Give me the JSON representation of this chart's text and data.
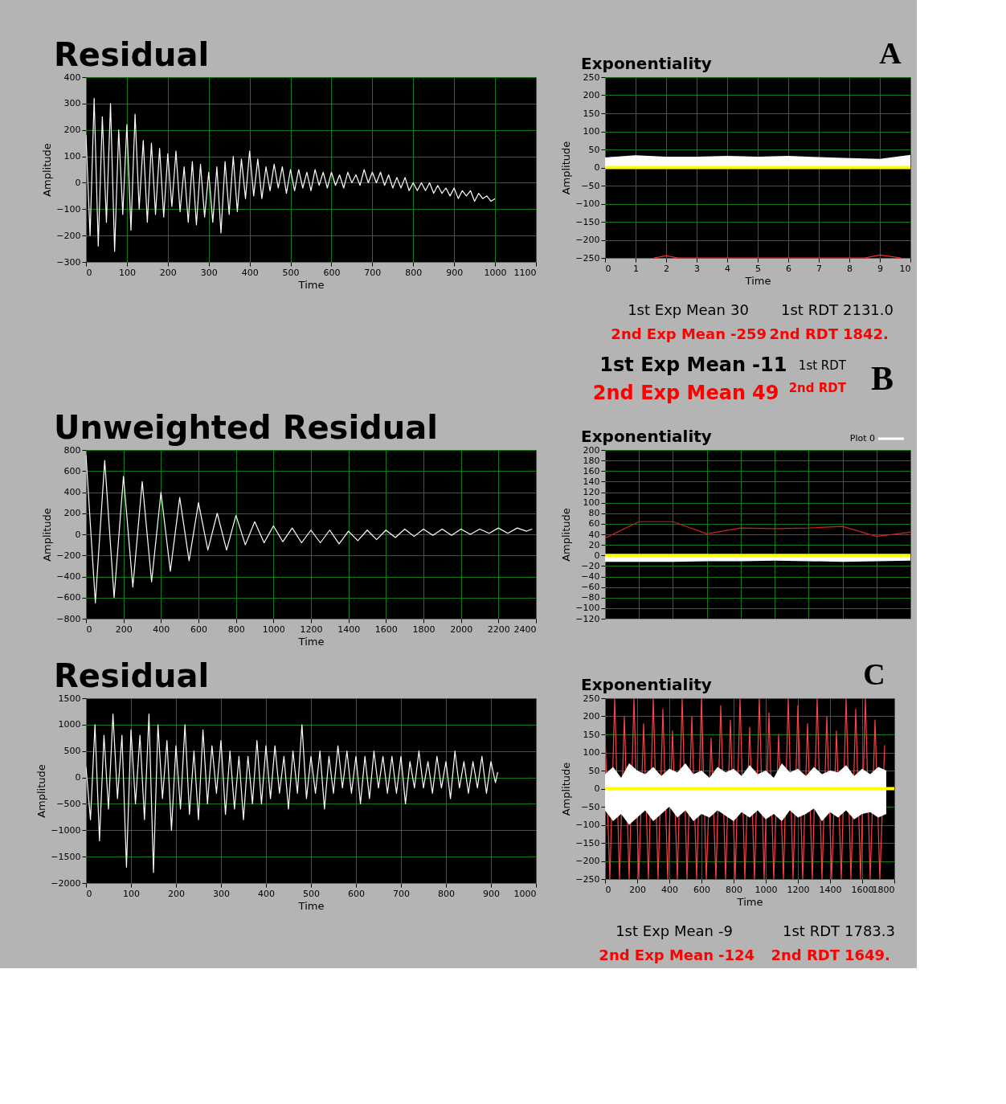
{
  "chart_data": [
    {
      "type": "line",
      "title": "Residual",
      "xlabel": "Time",
      "ylabel": "Amplitude",
      "xlim": [
        0,
        1100
      ],
      "xticks": [
        0,
        100,
        200,
        300,
        400,
        500,
        600,
        700,
        800,
        900,
        1000,
        1100
      ],
      "ylim": [
        -300,
        400
      ],
      "yticks": [
        -300,
        -200,
        -100,
        0,
        100,
        200,
        300,
        400
      ],
      "grid": true,
      "x": [
        0,
        10,
        20,
        30,
        40,
        50,
        60,
        70,
        80,
        90,
        100,
        110,
        120,
        130,
        140,
        150,
        160,
        170,
        180,
        190,
        200,
        210,
        220,
        230,
        240,
        250,
        260,
        270,
        280,
        290,
        300,
        310,
        320,
        330,
        340,
        350,
        360,
        370,
        380,
        390,
        400,
        410,
        420,
        430,
        440,
        450,
        460,
        470,
        480,
        490,
        500,
        510,
        520,
        530,
        540,
        550,
        560,
        570,
        580,
        590,
        600,
        610,
        620,
        630,
        640,
        650,
        660,
        670,
        680,
        690,
        700,
        710,
        720,
        730,
        740,
        750,
        760,
        770,
        780,
        790,
        800,
        810,
        820,
        830,
        840,
        850,
        860,
        870,
        880,
        890,
        900,
        910,
        920,
        930,
        940,
        950,
        960,
        970,
        980,
        990,
        1000
      ],
      "series": [
        {
          "color": "#ffffff",
          "values": [
            180,
            -200,
            320,
            -240,
            250,
            -150,
            300,
            -260,
            200,
            -120,
            220,
            -180,
            260,
            -100,
            160,
            -150,
            150,
            -120,
            130,
            -130,
            110,
            -90,
            120,
            -110,
            60,
            -150,
            80,
            -160,
            70,
            -130,
            40,
            -150,
            60,
            -190,
            80,
            -120,
            100,
            -110,
            90,
            -60,
            120,
            -50,
            90,
            -60,
            60,
            -30,
            70,
            -20,
            60,
            -40,
            50,
            -30,
            50,
            -20,
            40,
            -30,
            50,
            -10,
            40,
            -20,
            40,
            -10,
            30,
            -20,
            40,
            0,
            30,
            -10,
            50,
            0,
            40,
            0,
            40,
            -10,
            30,
            -20,
            20,
            -20,
            20,
            -30,
            0,
            -30,
            0,
            -30,
            0,
            -40,
            -10,
            -40,
            -20,
            -50,
            -20,
            -60,
            -30,
            -50,
            -30,
            -70,
            -40,
            -60,
            -50,
            -70,
            -60
          ]
        }
      ]
    },
    {
      "type": "line",
      "title": "Exponentiality",
      "xlabel": "Time",
      "ylabel": "Amplitude",
      "xlim": [
        0,
        10
      ],
      "xticks": [
        0,
        1,
        2,
        3,
        4,
        5,
        6,
        7,
        8,
        9,
        10
      ],
      "ylim": [
        -250,
        250
      ],
      "yticks": [
        -250,
        -200,
        -150,
        -100,
        -50,
        0,
        50,
        100,
        150,
        200,
        250
      ],
      "grid": true,
      "series": [
        {
          "type": "area",
          "color": "#ffffff",
          "x": [
            0,
            1,
            2,
            3,
            4,
            5,
            6,
            7,
            8,
            9,
            10
          ],
          "values": [
            28,
            34,
            30,
            30,
            32,
            30,
            32,
            29,
            26,
            24,
            35
          ]
        },
        {
          "color": "#ff3030",
          "x": [
            1.6,
            2,
            2.4,
            8.5,
            9,
            9.7
          ],
          "values": [
            -250,
            -244,
            -250,
            -250,
            -242,
            -250
          ]
        }
      ],
      "ref_lines": [
        {
          "axis": "y",
          "value": 0,
          "color": "#ffff00"
        }
      ],
      "annotations": [
        "A",
        "1st Exp Mean",
        "30",
        "1st RDT",
        "2131.0",
        "2nd Exp Mean",
        "-259",
        "2nd RDT",
        "1842."
      ]
    },
    {
      "type": "line",
      "title": "Unweighted Residual",
      "xlabel": "Time",
      "ylabel": "Amplitude",
      "xlim": [
        0,
        2400
      ],
      "xticks": [
        0,
        200,
        400,
        600,
        800,
        1000,
        1200,
        1400,
        1600,
        1800,
        2000,
        2200,
        2400
      ],
      "ylim": [
        -800,
        800
      ],
      "yticks": [
        -800,
        -600,
        -400,
        -200,
        0,
        200,
        400,
        600,
        800
      ],
      "grid": true,
      "x": [
        0,
        50,
        100,
        150,
        200,
        250,
        300,
        350,
        400,
        450,
        500,
        550,
        600,
        650,
        700,
        750,
        800,
        850,
        900,
        950,
        1000,
        1050,
        1100,
        1150,
        1200,
        1250,
        1300,
        1350,
        1400,
        1450,
        1500,
        1550,
        1600,
        1650,
        1700,
        1750,
        1800,
        1850,
        1900,
        1950,
        2000,
        2050,
        2100,
        2150,
        2200,
        2250,
        2300,
        2350,
        2380
      ],
      "series": [
        {
          "color": "#ffffff",
          "values": [
            750,
            -650,
            700,
            -600,
            550,
            -500,
            500,
            -450,
            400,
            -350,
            350,
            -250,
            300,
            -150,
            200,
            -150,
            180,
            -100,
            120,
            -80,
            80,
            -70,
            60,
            -80,
            40,
            -80,
            40,
            -90,
            30,
            -60,
            40,
            -50,
            40,
            -30,
            50,
            -20,
            50,
            -10,
            50,
            -10,
            50,
            0,
            50,
            10,
            60,
            10,
            60,
            30,
            50
          ]
        }
      ]
    },
    {
      "type": "line",
      "title": "Exponentiality",
      "ylabel": "Amplitude",
      "categories": [
        null,
        null,
        null,
        null,
        null,
        null,
        null,
        null,
        null,
        null
      ],
      "ylim": [
        -120,
        200
      ],
      "yticks": [
        -120,
        -100,
        -80,
        -60,
        -40,
        -20,
        0,
        20,
        40,
        60,
        80,
        100,
        120,
        140,
        160,
        180,
        200
      ],
      "grid": true,
      "tick_labels": "y",
      "legend": "top right",
      "series": [
        {
          "type": "area",
          "name": "Plot 0",
          "color": "#ffffff",
          "values": [
            -12,
            -12,
            -12,
            -11,
            -11,
            -10,
            -11,
            -12,
            -11,
            -10
          ]
        },
        {
          "color": "#d02020",
          "values": [
            33,
            64,
            64,
            41,
            52,
            51,
            52,
            55,
            36,
            44
          ]
        }
      ],
      "ref_lines": [
        {
          "axis": "y",
          "value": 0,
          "color": "#ffff00"
        }
      ],
      "annotations": [
        "1st Exp Mean",
        "-11",
        "2nd Exp Mean",
        "49",
        "1st RDT",
        "2nd RDT",
        "B"
      ]
    },
    {
      "type": "line",
      "title": "Residual",
      "xlabel": "Time",
      "ylabel": "Amplitude",
      "xlim": [
        0,
        1000
      ],
      "xticks": [
        0,
        100,
        200,
        300,
        400,
        500,
        600,
        700,
        800,
        900,
        1000
      ],
      "ylim": [
        -2000,
        1500
      ],
      "yticks": [
        -2000,
        -1500,
        -1000,
        -500,
        0,
        500,
        1000,
        1500
      ],
      "grid": true,
      "x": [
        0,
        10,
        20,
        30,
        40,
        50,
        60,
        70,
        80,
        90,
        100,
        110,
        120,
        130,
        140,
        150,
        160,
        170,
        180,
        190,
        200,
        210,
        220,
        230,
        240,
        250,
        260,
        270,
        280,
        290,
        300,
        310,
        320,
        330,
        340,
        350,
        360,
        370,
        380,
        390,
        400,
        410,
        420,
        430,
        440,
        450,
        460,
        470,
        480,
        490,
        500,
        510,
        520,
        530,
        540,
        550,
        560,
        570,
        580,
        590,
        600,
        610,
        620,
        630,
        640,
        650,
        660,
        670,
        680,
        690,
        700,
        710,
        720,
        730,
        740,
        750,
        760,
        770,
        780,
        790,
        800,
        810,
        820,
        830,
        840,
        850,
        860,
        870,
        880,
        890,
        900,
        910,
        915
      ],
      "series": [
        {
          "color": "#ffffff",
          "values": [
            200,
            -800,
            1000,
            -1200,
            800,
            -600,
            1200,
            -400,
            800,
            -1700,
            900,
            -500,
            800,
            -800,
            1200,
            -1800,
            1000,
            -400,
            700,
            -1000,
            600,
            -600,
            1000,
            -700,
            500,
            -800,
            900,
            -500,
            600,
            -300,
            700,
            -700,
            500,
            -600,
            400,
            -800,
            400,
            -500,
            700,
            -500,
            600,
            -400,
            600,
            -300,
            400,
            -600,
            500,
            -300,
            1000,
            -400,
            400,
            -300,
            500,
            -600,
            400,
            -300,
            600,
            -200,
            500,
            -300,
            400,
            -500,
            400,
            -400,
            500,
            -200,
            400,
            -300,
            400,
            -300,
            400,
            -500,
            300,
            -200,
            500,
            -200,
            300,
            -300,
            400,
            -200,
            300,
            -400,
            500,
            -200,
            300,
            -300,
            300,
            -200,
            400,
            -300,
            300,
            -100,
            100
          ]
        }
      ]
    },
    {
      "type": "line",
      "title": "Exponentiality",
      "xlabel": "Time",
      "ylabel": "Amplitude",
      "xlim": [
        0,
        1800
      ],
      "xticks": [
        0,
        200,
        400,
        600,
        800,
        1000,
        1200,
        1400,
        1600,
        1800
      ],
      "ylim": [
        -250,
        250
      ],
      "yticks": [
        -250,
        -200,
        -150,
        -100,
        -50,
        0,
        50,
        100,
        150,
        200,
        250
      ],
      "grid": true,
      "series": [
        {
          "color": "#ff4040",
          "x": [
            0,
            30,
            60,
            90,
            120,
            150,
            180,
            210,
            240,
            270,
            300,
            330,
            360,
            390,
            420,
            450,
            480,
            510,
            540,
            570,
            600,
            630,
            660,
            690,
            720,
            750,
            780,
            810,
            840,
            870,
            900,
            930,
            960,
            990,
            1020,
            1050,
            1080,
            1110,
            1140,
            1170,
            1200,
            1230,
            1260,
            1290,
            1320,
            1350,
            1380,
            1410,
            1440,
            1470,
            1500,
            1530,
            1560,
            1590,
            1620,
            1650,
            1680,
            1710,
            1740
          ],
          "values": [
            150,
            -250,
            250,
            -250,
            200,
            -250,
            250,
            -250,
            180,
            -250,
            250,
            -250,
            220,
            -250,
            160,
            -250,
            250,
            -250,
            200,
            -250,
            250,
            -250,
            140,
            -250,
            230,
            -250,
            190,
            -250,
            250,
            -250,
            170,
            -250,
            250,
            -250,
            210,
            -250,
            150,
            -250,
            250,
            -250,
            230,
            -250,
            180,
            -250,
            250,
            -250,
            200,
            -250,
            160,
            -250,
            250,
            -250,
            220,
            -250,
            250,
            -250,
            190,
            -250,
            120
          ]
        },
        {
          "type": "area",
          "color": "#ffffff",
          "x": [
            0,
            50,
            100,
            150,
            200,
            250,
            300,
            350,
            400,
            450,
            500,
            550,
            600,
            650,
            700,
            750,
            800,
            850,
            900,
            950,
            1000,
            1050,
            1100,
            1150,
            1200,
            1250,
            1300,
            1350,
            1400,
            1450,
            1500,
            1550,
            1600,
            1650,
            1700,
            1750
          ],
          "values": [
            40,
            60,
            30,
            70,
            50,
            40,
            60,
            35,
            55,
            45,
            70,
            40,
            50,
            30,
            60,
            45,
            55,
            35,
            65,
            40,
            50,
            30,
            70,
            45,
            55,
            35,
            60,
            40,
            50,
            45,
            65,
            35,
            55,
            40,
            60,
            50
          ]
        },
        {
          "type": "area",
          "color": "#ffffff",
          "x": [
            0,
            50,
            100,
            150,
            200,
            250,
            300,
            350,
            400,
            450,
            500,
            550,
            600,
            650,
            700,
            750,
            800,
            850,
            900,
            950,
            1000,
            1050,
            1100,
            1150,
            1200,
            1250,
            1300,
            1350,
            1400,
            1450,
            1500,
            1550,
            1600,
            1650,
            1700,
            1750
          ],
          "values": [
            -60,
            -90,
            -70,
            -100,
            -80,
            -60,
            -90,
            -70,
            -50,
            -80,
            -60,
            -90,
            -70,
            -80,
            -60,
            -75,
            -90,
            -65,
            -80,
            -60,
            -85,
            -70,
            -90,
            -60,
            -80,
            -70,
            -55,
            -90,
            -65,
            -80,
            -60,
            -85,
            -70,
            -65,
            -80,
            -70
          ]
        }
      ],
      "ref_lines": [
        {
          "axis": "y",
          "value": 0,
          "color": "#ffff00"
        }
      ],
      "annotations": [
        "C",
        "1st Exp Mean",
        "-9",
        "1st RDT",
        "1783.3",
        "2nd Exp Mean",
        "-124",
        "2nd RDT",
        "1649."
      ]
    }
  ]
}
